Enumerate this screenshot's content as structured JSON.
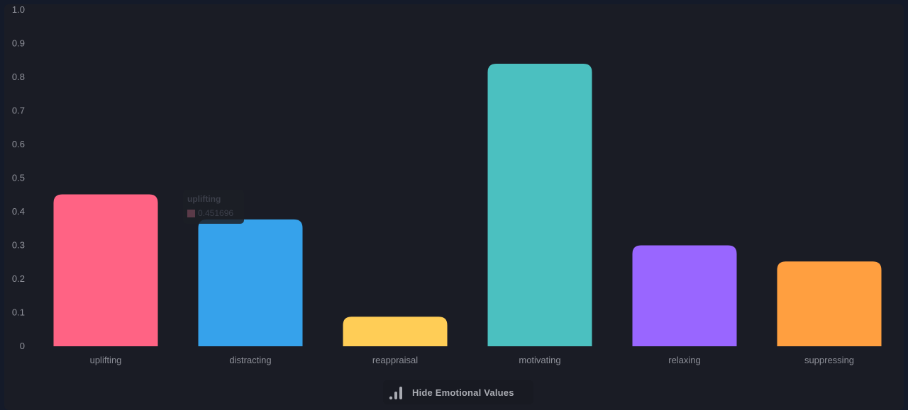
{
  "chart_data": {
    "type": "bar",
    "categories": [
      "uplifting",
      "distracting",
      "reappraisal",
      "motivating",
      "relaxing",
      "suppressing"
    ],
    "values": [
      0.451696,
      0.377,
      0.088,
      0.84,
      0.3,
      0.252
    ],
    "colors": [
      "#ff6384",
      "#36a2eb",
      "#ffcd56",
      "#4bc0c0",
      "#9966ff",
      "#ff9f40"
    ],
    "ylim": [
      0,
      1.0
    ],
    "yticks": [
      "0",
      "0.1",
      "0.2",
      "0.3",
      "0.4",
      "0.5",
      "0.6",
      "0.7",
      "0.8",
      "0.9",
      "1.0"
    ],
    "grid": false,
    "legend": false
  },
  "tooltip": {
    "title": "uplifting",
    "value": "0.451696"
  },
  "toggle": {
    "label": "Hide Emotional Values",
    "icon": "bar-chart-icon"
  }
}
